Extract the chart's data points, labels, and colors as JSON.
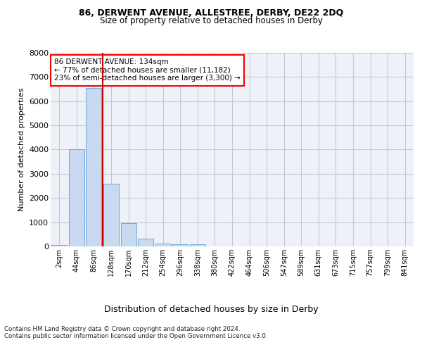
{
  "title_line1": "86, DERWENT AVENUE, ALLESTREE, DERBY, DE22 2DQ",
  "title_line2": "Size of property relative to detached houses in Derby",
  "xlabel": "Distribution of detached houses by size in Derby",
  "ylabel": "Number of detached properties",
  "annotation_line1": "86 DERWENT AVENUE: 134sqm",
  "annotation_line2": "← 77% of detached houses are smaller (11,182)",
  "annotation_line3": "23% of semi-detached houses are larger (3,300) →",
  "bar_labels": [
    "2sqm",
    "44sqm",
    "86sqm",
    "128sqm",
    "170sqm",
    "212sqm",
    "254sqm",
    "296sqm",
    "338sqm",
    "380sqm",
    "422sqm",
    "464sqm",
    "506sqm",
    "547sqm",
    "589sqm",
    "631sqm",
    "673sqm",
    "715sqm",
    "757sqm",
    "799sqm",
    "841sqm"
  ],
  "bar_values": [
    70,
    4000,
    6550,
    2600,
    950,
    310,
    130,
    100,
    90,
    0,
    0,
    0,
    0,
    0,
    0,
    0,
    0,
    0,
    0,
    0,
    0
  ],
  "bar_color": "#c9daf0",
  "bar_edgecolor": "#6aabdd",
  "vline_color": "#cc0000",
  "ylim": [
    0,
    8000
  ],
  "yticks": [
    0,
    1000,
    2000,
    3000,
    4000,
    5000,
    6000,
    7000,
    8000
  ],
  "background_color": "#ffffff",
  "plot_bg_color": "#eef2f8",
  "grid_color": "#c0c8d8",
  "footer_line1": "Contains HM Land Registry data © Crown copyright and database right 2024.",
  "footer_line2": "Contains public sector information licensed under the Open Government Licence v3.0."
}
